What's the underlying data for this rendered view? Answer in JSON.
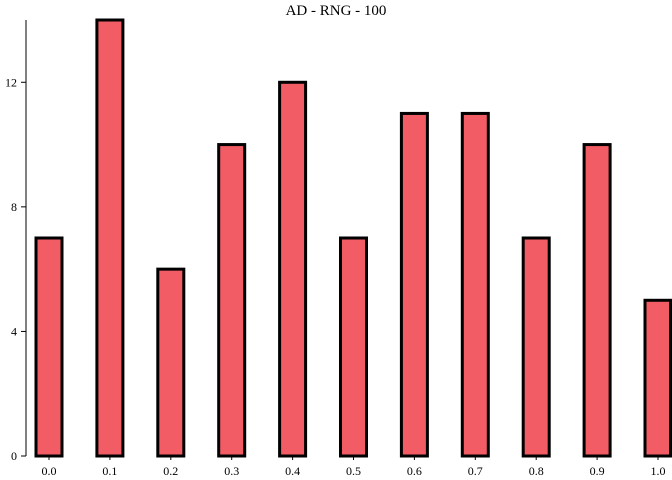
{
  "chart_data": {
    "type": "bar",
    "title": "AD - RNG - 100",
    "xlabel": "",
    "ylabel": "",
    "categories": [
      "0.0",
      "0.1",
      "0.2",
      "0.3",
      "0.4",
      "0.5",
      "0.6",
      "0.7",
      "0.8",
      "0.9",
      "1.0"
    ],
    "values": [
      7,
      14,
      6,
      10,
      12,
      7,
      11,
      11,
      7,
      10,
      5
    ],
    "ylim": [
      0,
      14
    ],
    "yticks": [
      0,
      4,
      8,
      12
    ],
    "grid": false,
    "bar_color": "#f25c64",
    "edge_color": "#000000"
  }
}
